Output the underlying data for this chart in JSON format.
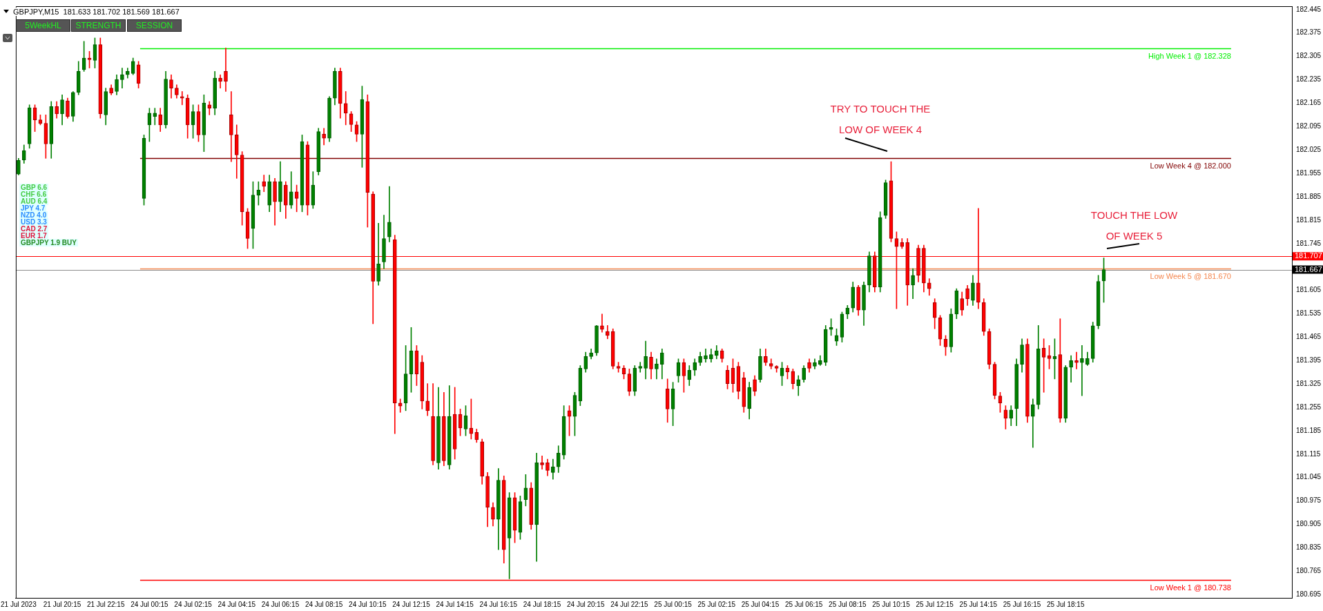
{
  "chart_data": {
    "type": "candlestick",
    "title": "GBPJPY,M15  181.633 181.702 181.569 181.667",
    "categories": [
      "21 Jul 2023",
      null,
      null,
      null,
      null,
      null,
      null,
      null,
      "21 Jul 20:15",
      null,
      null,
      null,
      null,
      null,
      null,
      null,
      "21 Jul 22:15",
      null,
      null,
      null,
      null,
      null,
      null,
      null,
      "24 Jul 00:15",
      null,
      null,
      null,
      null,
      null,
      null,
      null,
      "24 Jul 02:15",
      null,
      null,
      null,
      null,
      null,
      null,
      null,
      "24 Jul 04:15",
      null,
      null,
      null,
      null,
      null,
      null,
      null,
      "24 Jul 06:15",
      null,
      null,
      null,
      null,
      null,
      null,
      null,
      "24 Jul 08:15",
      null,
      null,
      null,
      null,
      null,
      null,
      null,
      "24 Jul 10:15",
      null,
      null,
      null,
      null,
      null,
      null,
      null,
      "24 Jul 12:15",
      null,
      null,
      null,
      null,
      null,
      null,
      null,
      "24 Jul 14:15",
      null,
      null,
      null,
      null,
      null,
      null,
      null,
      "24 Jul 16:15",
      null,
      null,
      null,
      null,
      null,
      null,
      null,
      "24 Jul 18:15",
      null,
      null,
      null,
      null,
      null,
      null,
      null,
      "24 Jul 20:15",
      null,
      null,
      null,
      null,
      null,
      null,
      null,
      "24 Jul 22:15",
      null,
      null,
      null,
      null,
      null,
      null,
      null,
      "25 Jul 00:15",
      null,
      null,
      null,
      null,
      null,
      null,
      null,
      "25 Jul 02:15",
      null,
      null,
      null,
      null,
      null,
      null,
      null,
      "25 Jul 04:15",
      null,
      null,
      null,
      null,
      null,
      null,
      null,
      "25 Jul 06:15",
      null,
      null,
      null,
      null,
      null,
      null,
      null,
      "25 Jul 08:15",
      null,
      null,
      null,
      null,
      null,
      null,
      null,
      "25 Jul 10:15",
      null,
      null,
      null,
      null,
      null,
      null,
      null,
      "25 Jul 12:15",
      null,
      null,
      null,
      null,
      null,
      null,
      null,
      "25 Jul 14:15",
      null,
      null,
      null,
      null,
      null,
      null,
      null,
      "25 Jul 16:15",
      null,
      null,
      null,
      null,
      null,
      null,
      null,
      "25 Jul 18:15",
      null,
      null,
      null,
      null,
      null,
      null,
      null,
      null,
      null,
      null,
      null,
      null,
      null,
      null,
      null,
      null,
      null,
      null,
      null,
      null,
      null,
      null,
      null,
      null,
      null,
      null,
      null,
      null,
      null,
      null,
      null,
      null,
      null,
      null,
      null,
      null,
      null,
      null,
      null,
      null,
      null
    ],
    "ohlc": [
      [
        181.953,
        182.0,
        181.95,
        181.994
      ],
      [
        181.995,
        182.04,
        181.985,
        182.023
      ],
      [
        182.043,
        182.16,
        182.03,
        182.151
      ],
      [
        182.151,
        182.16,
        182.08,
        182.115
      ],
      [
        182.115,
        182.13,
        182.1,
        182.104
      ],
      [
        182.105,
        182.13,
        182.0,
        182.043
      ],
      [
        182.043,
        182.17,
        182.0,
        182.155
      ],
      [
        182.155,
        182.17,
        182.12,
        182.133
      ],
      [
        182.133,
        182.19,
        182.1,
        182.175
      ],
      [
        182.172,
        182.18,
        182.12,
        182.125
      ],
      [
        182.126,
        182.2,
        182.11,
        182.197
      ],
      [
        182.197,
        182.29,
        182.19,
        182.26
      ],
      [
        182.265,
        182.35,
        182.26,
        182.3
      ],
      [
        182.3,
        182.32,
        182.27,
        182.295
      ],
      [
        182.293,
        182.36,
        182.27,
        182.34
      ],
      [
        182.34,
        182.36,
        182.12,
        182.133
      ],
      [
        182.13,
        182.21,
        182.1,
        182.2
      ],
      [
        182.21,
        182.22,
        182.19,
        182.195
      ],
      [
        182.2,
        182.25,
        182.19,
        182.236
      ],
      [
        182.235,
        182.27,
        182.21,
        182.25
      ],
      [
        182.25,
        182.27,
        182.24,
        182.26
      ],
      [
        182.254,
        182.3,
        182.25,
        182.29
      ],
      [
        182.28,
        182.29,
        182.21,
        182.224
      ],
      [
        181.88,
        182.07,
        181.86,
        182.06
      ],
      [
        182.1,
        182.15,
        182.05,
        182.135
      ],
      [
        182.125,
        182.15,
        182.1,
        182.135
      ],
      [
        182.13,
        182.15,
        182.08,
        182.1
      ],
      [
        182.1,
        182.26,
        182.09,
        182.237
      ],
      [
        182.235,
        182.25,
        182.18,
        182.21
      ],
      [
        182.21,
        182.22,
        182.18,
        182.19
      ],
      [
        182.185,
        182.2,
        182.16,
        182.18
      ],
      [
        182.18,
        182.19,
        182.06,
        182.1
      ],
      [
        182.1,
        182.16,
        182.06,
        182.14
      ],
      [
        182.14,
        182.16,
        182.05,
        182.07
      ],
      [
        182.07,
        182.19,
        182.02,
        182.165
      ],
      [
        182.16,
        182.17,
        182.13,
        182.15
      ],
      [
        182.15,
        182.26,
        182.13,
        182.24
      ],
      [
        182.24,
        182.25,
        182.21,
        182.23
      ],
      [
        182.26,
        182.33,
        182.2,
        182.23
      ],
      [
        182.13,
        182.2,
        181.99,
        182.07
      ],
      [
        182.07,
        182.1,
        181.94,
        182.01
      ],
      [
        182.01,
        182.02,
        181.8,
        181.84
      ],
      [
        181.84,
        181.85,
        181.73,
        181.76
      ],
      [
        181.79,
        181.93,
        181.73,
        181.89
      ],
      [
        181.89,
        181.93,
        181.86,
        181.905
      ],
      [
        181.93,
        181.95,
        181.9,
        181.916
      ],
      [
        181.86,
        181.95,
        181.84,
        181.93
      ],
      [
        181.93,
        181.94,
        181.8,
        181.87
      ],
      [
        181.87,
        181.99,
        181.84,
        181.93
      ],
      [
        181.92,
        181.93,
        181.82,
        181.86
      ],
      [
        181.86,
        181.96,
        181.85,
        181.9
      ],
      [
        181.9,
        181.92,
        181.84,
        181.88
      ],
      [
        181.86,
        182.07,
        181.84,
        182.05
      ],
      [
        182.04,
        182.05,
        181.83,
        181.86
      ],
      [
        181.86,
        181.96,
        181.85,
        181.92
      ],
      [
        181.96,
        182.09,
        181.95,
        182.08
      ],
      [
        182.072,
        182.09,
        182.04,
        182.06
      ],
      [
        182.06,
        182.185,
        182.05,
        182.18
      ],
      [
        182.18,
        182.27,
        182.16,
        182.26
      ],
      [
        182.26,
        182.27,
        182.12,
        182.164
      ],
      [
        182.164,
        182.2,
        182.1,
        182.135
      ],
      [
        182.133,
        182.14,
        182.08,
        182.101
      ],
      [
        182.1,
        182.11,
        182.05,
        182.072
      ],
      [
        182.072,
        182.216,
        181.973,
        182.176
      ],
      [
        182.17,
        182.19,
        181.794,
        181.898
      ],
      [
        181.893,
        181.9,
        181.505,
        181.632
      ],
      [
        181.632,
        181.806,
        181.62,
        181.684
      ],
      [
        181.69,
        181.83,
        181.67,
        181.76
      ],
      [
        181.765,
        181.916,
        181.75,
        181.809
      ],
      [
        181.757,
        181.77,
        181.176,
        181.268
      ],
      [
        181.268,
        181.28,
        181.24,
        181.259
      ],
      [
        181.268,
        181.44,
        181.245,
        181.355
      ],
      [
        181.355,
        181.494,
        181.3,
        181.424
      ],
      [
        181.424,
        181.44,
        181.32,
        181.355
      ],
      [
        181.39,
        181.41,
        181.25,
        181.274
      ],
      [
        181.274,
        181.326,
        181.23,
        181.245
      ],
      [
        181.228,
        181.326,
        181.083,
        181.095
      ],
      [
        181.089,
        181.315,
        181.07,
        181.228
      ],
      [
        181.228,
        181.3,
        181.08,
        181.095
      ],
      [
        181.083,
        181.32,
        181.07,
        181.228
      ],
      [
        181.234,
        181.315,
        181.1,
        181.13
      ],
      [
        181.234,
        181.25,
        181.17,
        181.193
      ],
      [
        181.19,
        181.26,
        181.17,
        181.23
      ],
      [
        181.193,
        181.28,
        181.16,
        181.176
      ],
      [
        181.18,
        181.19,
        181.15,
        181.158
      ],
      [
        181.152,
        181.16,
        181.025,
        181.049
      ],
      [
        181.049,
        181.06,
        180.898,
        180.956
      ],
      [
        180.956,
        180.97,
        180.9,
        180.92
      ],
      [
        180.92,
        181.072,
        180.829,
        181.037
      ],
      [
        181.037,
        181.05,
        180.789,
        180.829
      ],
      [
        180.864,
        181.0,
        180.742,
        180.985
      ],
      [
        180.985,
        181.0,
        180.85,
        180.887
      ],
      [
        180.881,
        180.99,
        180.86,
        180.973
      ],
      [
        180.979,
        181.054,
        180.96,
        181.014
      ],
      [
        181.014,
        181.03,
        180.89,
        180.904
      ],
      [
        180.904,
        181.118,
        180.794,
        181.089
      ],
      [
        181.089,
        181.11,
        181.07,
        181.083
      ],
      [
        181.089,
        181.1,
        181.05,
        181.066
      ],
      [
        181.06,
        181.1,
        181.04,
        181.077
      ],
      [
        181.077,
        181.14,
        181.06,
        181.118
      ],
      [
        181.112,
        181.26,
        181.1,
        181.228
      ],
      [
        181.245,
        181.26,
        181.17,
        181.228
      ],
      [
        181.228,
        181.3,
        181.17,
        181.291
      ],
      [
        181.274,
        181.38,
        181.26,
        181.372
      ],
      [
        181.37,
        181.42,
        181.36,
        181.407
      ],
      [
        181.407,
        181.43,
        181.4,
        181.418
      ],
      [
        181.418,
        181.5,
        181.41,
        181.499
      ],
      [
        181.499,
        181.534,
        181.48,
        181.488
      ],
      [
        181.482,
        181.5,
        181.46,
        181.47
      ],
      [
        181.482,
        181.49,
        181.37,
        181.378
      ],
      [
        181.378,
        181.39,
        181.36,
        181.372
      ],
      [
        181.372,
        181.38,
        181.34,
        181.355
      ],
      [
        181.355,
        181.37,
        181.29,
        181.303
      ],
      [
        181.303,
        181.38,
        181.29,
        181.372
      ],
      [
        181.372,
        181.39,
        181.36,
        181.378
      ],
      [
        181.372,
        181.453,
        181.34,
        181.407
      ],
      [
        181.405,
        181.42,
        181.34,
        181.37
      ],
      [
        181.37,
        181.4,
        181.34,
        181.385
      ],
      [
        181.384,
        181.43,
        181.34,
        181.418
      ],
      [
        181.31,
        181.34,
        181.21,
        181.25
      ],
      [
        181.25,
        181.33,
        181.2,
        181.31
      ],
      [
        181.349,
        181.4,
        181.33,
        181.389
      ],
      [
        181.389,
        181.4,
        181.3,
        181.349
      ],
      [
        181.338,
        181.38,
        181.32,
        181.366
      ],
      [
        181.366,
        181.4,
        181.35,
        181.389
      ],
      [
        181.389,
        181.42,
        181.38,
        181.407
      ],
      [
        181.4,
        181.43,
        181.39,
        181.41
      ],
      [
        181.4,
        181.43,
        181.39,
        181.413
      ],
      [
        181.41,
        181.44,
        181.4,
        181.424
      ],
      [
        181.424,
        181.43,
        181.39,
        181.401
      ],
      [
        181.366,
        181.38,
        181.31,
        181.326
      ],
      [
        181.372,
        181.4,
        181.3,
        181.326
      ],
      [
        181.378,
        181.39,
        181.28,
        181.303
      ],
      [
        181.343,
        181.36,
        181.24,
        181.257
      ],
      [
        181.251,
        181.33,
        181.22,
        181.315
      ],
      [
        181.338,
        181.35,
        181.29,
        181.303
      ],
      [
        181.338,
        181.43,
        181.33,
        181.407
      ],
      [
        181.407,
        181.43,
        181.38,
        181.389
      ],
      [
        181.386,
        181.4,
        181.37,
        181.378
      ],
      [
        181.378,
        181.38,
        181.36,
        181.372
      ],
      [
        181.349,
        181.39,
        181.32,
        181.372
      ],
      [
        181.372,
        181.38,
        181.34,
        181.361
      ],
      [
        181.363,
        181.37,
        181.31,
        181.326
      ],
      [
        181.32,
        181.35,
        181.29,
        181.338
      ],
      [
        181.338,
        181.38,
        181.33,
        181.372
      ],
      [
        181.389,
        181.4,
        181.36,
        181.372
      ],
      [
        181.378,
        181.4,
        181.37,
        181.389
      ],
      [
        181.384,
        181.41,
        181.38,
        181.395
      ],
      [
        181.39,
        181.5,
        181.38,
        181.488
      ],
      [
        181.488,
        181.52,
        181.47,
        181.494
      ],
      [
        181.453,
        181.49,
        181.44,
        181.47
      ],
      [
        181.465,
        181.54,
        181.45,
        181.534
      ],
      [
        181.534,
        181.56,
        181.52,
        181.552
      ],
      [
        181.552,
        181.63,
        181.54,
        181.615
      ],
      [
        181.615,
        181.62,
        181.53,
        181.546
      ],
      [
        181.546,
        181.63,
        181.5,
        181.621
      ],
      [
        181.621,
        181.72,
        181.6,
        181.708
      ],
      [
        181.708,
        181.72,
        181.6,
        181.615
      ],
      [
        181.615,
        181.84,
        181.6,
        181.823
      ],
      [
        181.829,
        181.935,
        181.82,
        181.927
      ],
      [
        181.933,
        181.99,
        181.75,
        181.76
      ],
      [
        181.76,
        181.78,
        181.55,
        181.736
      ],
      [
        181.748,
        181.76,
        181.73,
        181.736
      ],
      [
        181.748,
        181.76,
        181.56,
        181.621
      ],
      [
        181.621,
        181.67,
        181.58,
        181.65
      ],
      [
        181.731,
        181.74,
        181.63,
        181.65
      ],
      [
        181.731,
        181.74,
        181.6,
        181.627
      ],
      [
        181.627,
        181.64,
        181.59,
        181.61
      ],
      [
        181.569,
        181.58,
        181.49,
        181.523
      ],
      [
        181.523,
        181.53,
        181.44,
        181.459
      ],
      [
        181.459,
        181.47,
        181.41,
        181.436
      ],
      [
        181.436,
        181.55,
        181.42,
        181.534
      ],
      [
        181.534,
        181.61,
        181.52,
        181.604
      ],
      [
        181.58,
        181.6,
        181.53,
        181.546
      ],
      [
        181.61,
        181.62,
        181.56,
        181.58
      ],
      [
        181.575,
        181.65,
        181.56,
        181.627
      ],
      [
        181.627,
        181.85,
        181.55,
        181.569
      ],
      [
        181.569,
        181.58,
        181.47,
        181.482
      ],
      [
        181.482,
        181.49,
        181.37,
        181.384
      ],
      [
        181.384,
        181.39,
        181.28,
        181.291
      ],
      [
        181.289,
        181.3,
        181.24,
        181.268
      ],
      [
        181.247,
        181.26,
        181.19,
        181.222
      ],
      [
        181.222,
        181.26,
        181.2,
        181.247
      ],
      [
        181.251,
        181.4,
        181.2,
        181.384
      ],
      [
        181.384,
        181.46,
        181.36,
        181.442
      ],
      [
        181.444,
        181.46,
        181.21,
        181.228
      ],
      [
        181.228,
        181.28,
        181.135,
        181.263
      ],
      [
        181.263,
        181.5,
        181.25,
        181.43
      ],
      [
        181.432,
        181.46,
        181.3,
        181.405
      ],
      [
        181.41,
        181.44,
        181.37,
        181.401
      ],
      [
        181.4,
        181.46,
        181.34,
        181.407
      ],
      [
        181.413,
        181.52,
        181.21,
        181.222
      ],
      [
        181.222,
        181.38,
        181.21,
        181.375
      ],
      [
        181.375,
        181.41,
        181.33,
        181.395
      ],
      [
        181.395,
        181.42,
        181.37,
        181.389
      ],
      [
        181.389,
        181.44,
        181.29,
        181.401
      ],
      [
        181.384,
        181.42,
        181.38,
        181.401
      ],
      [
        181.401,
        181.51,
        181.39,
        181.499
      ],
      [
        181.499,
        181.65,
        181.49,
        181.632
      ],
      [
        181.633,
        181.702,
        181.569,
        181.667
      ],
      null,
      null,
      null,
      null,
      null,
      null,
      null,
      null,
      null,
      null,
      null,
      null,
      null,
      null,
      null,
      null,
      null,
      null,
      null,
      null,
      null,
      null,
      null,
      null,
      null,
      null,
      null,
      null,
      null,
      null,
      null,
      null,
      null,
      null
    ],
    "ylim": [
      180.685,
      182.455
    ],
    "yticks": [
      182.445,
      182.375,
      182.305,
      182.235,
      182.165,
      182.095,
      182.025,
      181.955,
      181.885,
      181.815,
      181.745,
      181.605,
      181.535,
      181.465,
      181.395,
      181.325,
      181.255,
      181.185,
      181.115,
      181.045,
      180.975,
      180.905,
      180.835,
      180.765,
      180.695
    ],
    "ref_lines": [
      {
        "axis": "y",
        "value": 182.328,
        "label": "High Week 1 @ 182.328",
        "color": "#00ee00"
      },
      {
        "axis": "y",
        "value": 182.0,
        "label": "Low Week 4 @ 182.000",
        "color": "#800000"
      },
      {
        "axis": "y",
        "value": 181.67,
        "label": "Low Week 5 @ 181.670",
        "color": "#f4874f"
      },
      {
        "axis": "y",
        "value": 180.738,
        "label": "Low Week 1 @ 180.738",
        "color": "#ff0000"
      },
      {
        "axis": "y",
        "value": 181.707,
        "label": "181.707",
        "color": "#ff0000"
      },
      {
        "axis": "y",
        "value": 181.667,
        "label": "181.667",
        "color": "#8c8c8c"
      }
    ],
    "annotations": [
      "5WeekHL",
      "STRENGTH",
      "SESSION",
      "GBP 6.6",
      "CHF 6.6",
      "AUD 6.4",
      "JPY 4.7",
      "NZD 4.0",
      "USD 3.3",
      "CAD 2.7",
      "EUR 1.7",
      "GBPJPY 1.9 BUY",
      "TRY TO TOUCH THE LOW OF WEEK 4",
      "TOUCH THE LOW OF WEEK 5"
    ],
    "grid": false,
    "legend": false
  }
}
